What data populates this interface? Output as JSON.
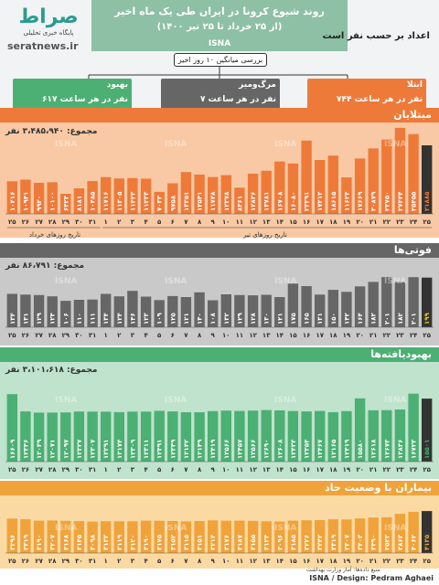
{
  "header": {
    "logo_text": "صراط",
    "logo_subtitle": "پایگاه خبری تحلیلی",
    "site": "seratnews.ir",
    "title": "روند شیوع کرونا در ایران طی یک ماه اخیر",
    "subtitle": "(از ۲۵ خرداد تا ۲۵ تیر ۱۴۰۰)",
    "agency": "ISNA",
    "unit_note": "اعداد بر حسب نفر است",
    "avg_label": "بررسی میانگین ۱۰ روز اخیر",
    "averages": [
      {
        "title": "ابتلا",
        "value": "۷۴۴ نفر در هر ساعت"
      },
      {
        "title": "مرگ‌ومیر",
        "value": "۷ نفر در هر ساعت"
      },
      {
        "title": "بهبود",
        "value": "۶۱۷ نفر در هر ساعت"
      }
    ]
  },
  "colors": {
    "header_band": "#8dc0a4",
    "infections": "#ee7a3a",
    "infections_bg": "#f8c9a4",
    "deaths": "#666666",
    "deaths_bg": "#c9c9c9",
    "recovered": "#4caf73",
    "recovered_bg": "#bfe3cc",
    "severe": "#f0a33a",
    "severe_bg": "#fbd9a3",
    "highlight": "#333333"
  },
  "watermark": "ISNA",
  "date_labels": {
    "khordad": "تاریخ روزهای خرداد",
    "tir": "تاریخ روزهای تیر"
  },
  "sections": {
    "infections": {
      "title": "مبتلایان",
      "total": "مجموع: ۳،۴۸۵،۹۴۰ نفر"
    },
    "deaths": {
      "title": "فوتی‌ها",
      "total": "مجموع: ۸۶،۷۹۱ نفر"
    },
    "recovered": {
      "title": "بهبودیافته‌ها",
      "total": "مجموع: ۳،۱۰۱،۶۱۸ نفر"
    },
    "severe": {
      "title": "بیماران با وضعیت حاد",
      "total": ""
    }
  },
  "footer": {
    "source": "منبع داده‌ها: آمار وزارت بهداشت",
    "credit": "ISNA / Design: Pedram Aghaei"
  },
  "chart_data": [
    {
      "type": "bar",
      "title": "مبتلایان",
      "categories": [
        "25",
        "26",
        "27",
        "28",
        "29",
        "30",
        "31",
        "1",
        "2",
        "3",
        "4",
        "5",
        "6",
        "7",
        "8",
        "9",
        "10",
        "11",
        "12",
        "13",
        "14",
        "15",
        "16",
        "17",
        "18",
        "19",
        "20",
        "21",
        "22",
        "23",
        "24",
        "25"
      ],
      "category_labels": [
        "۲۵",
        "۲۶",
        "۲۷",
        "۲۸",
        "۲۹",
        "۳۰",
        "۳۱",
        "۱",
        "۲",
        "۳",
        "۴",
        "۵",
        "۶",
        "۷",
        "۸",
        "۹",
        "۱۰",
        "۱۱",
        "۱۲",
        "۱۳",
        "۱۴",
        "۱۵",
        "۱۶",
        "۱۷",
        "۱۸",
        "۱۹",
        "۲۰",
        "۲۱",
        "۲۲",
        "۲۳",
        "۲۴",
        "۲۵"
      ],
      "values": [
        10416,
        10941,
        9920,
        10100,
        6424,
        8181,
        10485,
        11716,
        11305,
        11423,
        11233,
        7033,
        9758,
        13351,
        12541,
        11748,
        12378,
        8361,
        12836,
        13781,
        16708,
        16080,
        23391,
        17212,
        18615,
        11624,
        17669,
        20879,
        23750,
        27444,
        25455,
        21885
      ],
      "value_labels": [
        "۱۰۴۱۶",
        "۱۰۹۴۱",
        "۹۹۲۰",
        "۱۰۱۰۰",
        "۶۴۲۴",
        "۸۱۸۱",
        "۱۰۴۸۵",
        "۱۱۷۱۶",
        "۱۱۳۰۵",
        "۱۱۴۲۳",
        "۱۱۲۳۳",
        "۷۰۳۳",
        "۹۷۵۸",
        "۱۳۳۵۱",
        "۱۲۵۴۱",
        "۱۱۷۴۸",
        "۱۲۳۷۸",
        "۸۳۶۱",
        "۱۲۸۳۶",
        "۱۳۷۸۱",
        "۱۶۷۰۸",
        "۱۶۰۸۰",
        "۲۳۳۹۱",
        "۱۷۲۱۲",
        "۱۸۶۱۵",
        "۱۱۶۲۴",
        "۱۷۶۶۹",
        "۲۰۸۷۹",
        "۲۳۷۵۰",
        "۲۷۴۴۴",
        "۲۵۴۵۵",
        "۲۱۸۸۵"
      ],
      "ylim": [
        0,
        28000
      ]
    },
    {
      "type": "bar",
      "title": "فوتی‌ها",
      "categories": [
        "25",
        "26",
        "27",
        "28",
        "29",
        "30",
        "31",
        "1",
        "2",
        "3",
        "4",
        "5",
        "6",
        "7",
        "8",
        "9",
        "10",
        "11",
        "12",
        "13",
        "14",
        "15",
        "16",
        "17",
        "18",
        "19",
        "20",
        "21",
        "22",
        "23",
        "24",
        "25"
      ],
      "category_labels": [
        "۲۵",
        "۲۶",
        "۲۷",
        "۲۸",
        "۲۹",
        "۳۰",
        "۳۱",
        "۱",
        "۲",
        "۳",
        "۴",
        "۵",
        "۶",
        "۷",
        "۸",
        "۹",
        "۱۰",
        "۱۱",
        "۱۲",
        "۱۳",
        "۱۴",
        "۱۵",
        "۱۶",
        "۱۷",
        "۱۸",
        "۱۹",
        "۲۰",
        "۲۱",
        "۲۲",
        "۲۳",
        "۲۴",
        "۲۵"
      ],
      "values": [
        134,
        131,
        129,
        124,
        106,
        110,
        111,
        134,
        124,
        146,
        123,
        109,
        125,
        121,
        140,
        108,
        132,
        129,
        128,
        130,
        121,
        175,
        165,
        131,
        150,
        142,
        164,
        182,
        201,
        182,
        201,
        199
      ],
      "value_labels": [
        "۱۳۴",
        "۱۳۱",
        "۱۲۹",
        "۱۲۴",
        "۱۰۶",
        "۱۱۰",
        "۱۱۱",
        "۱۳۴",
        "۱۲۴",
        "۱۴۶",
        "۱۲۳",
        "۱۰۹",
        "۱۲۵",
        "۱۲۱",
        "۱۴۰",
        "۱۰۸",
        "۱۳۲",
        "۱۲۹",
        "۱۲۸",
        "۱۳۰",
        "۱۲۱",
        "۱۷۵",
        "۱۶۵",
        "۱۳۱",
        "۱۵۰",
        "۱۴۲",
        "۱۶۴",
        "۱۸۲",
        "۲۰۱",
        "۱۸۲",
        "۲۰۱",
        "۱۹۹"
      ],
      "ylim": [
        0,
        220
      ]
    },
    {
      "type": "bar",
      "title": "بهبودیافته‌ها",
      "categories": [
        "25",
        "26",
        "27",
        "28",
        "29",
        "30",
        "31",
        "1",
        "2",
        "3",
        "4",
        "5",
        "6",
        "7",
        "8",
        "9",
        "10",
        "11",
        "12",
        "13",
        "14",
        "15",
        "16",
        "17",
        "18",
        "19",
        "20",
        "21",
        "22",
        "23",
        "24",
        "25"
      ],
      "category_labels": [
        "۲۵",
        "۲۶",
        "۲۷",
        "۲۸",
        "۲۹",
        "۳۰",
        "۳۱",
        "۱",
        "۲",
        "۳",
        "۴",
        "۵",
        "۶",
        "۷",
        "۸",
        "۹",
        "۱۰",
        "۱۱",
        "۱۲",
        "۱۳",
        "۱۴",
        "۱۵",
        "۱۶",
        "۱۷",
        "۱۸",
        "۱۹",
        "۲۰",
        "۲۱",
        "۲۲",
        "۲۳",
        "۲۴",
        "۲۵"
      ],
      "values": [
        16609,
        12346,
        12049,
        12071,
        12097,
        12327,
        12307,
        12291,
        12174,
        12309,
        12311,
        12491,
        12349,
        12142,
        12149,
        12419,
        12566,
        12457,
        12566,
        12690,
        12608,
        12434,
        12354,
        12467,
        12165,
        12419,
        15580,
        12618,
        12673,
        12836,
        16723,
        15501
      ],
      "value_labels": [
        "۱۶۶۰۹",
        "۱۲۳۴۶",
        "۱۲۰۴۹",
        "۱۲۰۷۱",
        "۱۲۰۹۷",
        "۱۲۳۲۷",
        "۱۲۳۰۷",
        "۱۲۲۹۱",
        "۱۲۱۷۴",
        "۱۲۳۰۹",
        "۱۲۳۱۱",
        "۱۲۴۹۱",
        "۱۲۳۴۹",
        "۱۲۱۴۲",
        "۱۲۱۴۹",
        "۱۲۴۱۹",
        "۱۲۵۶۶",
        "۱۲۴۵۷",
        "۱۲۵۶۶",
        "۱۲۶۹۰",
        "۱۲۶۰۸",
        "۱۲۴۳۴",
        "۱۲۳۵۴",
        "۱۲۴۶۷",
        "۱۲۱۶۵",
        "۱۲۴۱۹",
        "۱۵۵۸۰",
        "۱۲۶۱۸",
        "۱۲۶۷۳",
        "۱۲۸۳۶",
        "۱۶۷۲۳",
        "۱۵۵۰۱"
      ],
      "ylim": [
        0,
        18000
      ]
    },
    {
      "type": "bar",
      "title": "بیماران با وضعیت حاد",
      "categories": [
        "25",
        "26",
        "27",
        "28",
        "29",
        "30",
        "31",
        "1",
        "2",
        "3",
        "4",
        "5",
        "6",
        "7",
        "8",
        "9",
        "10",
        "11",
        "12",
        "13",
        "14",
        "15",
        "16",
        "17",
        "18",
        "19",
        "20",
        "21",
        "22",
        "23",
        "24",
        "25"
      ],
      "category_labels": [
        "۲۵",
        "۲۶",
        "۲۷",
        "۲۸",
        "۲۹",
        "۳۰",
        "۳۱",
        "۱",
        "۲",
        "۳",
        "۴",
        "۵",
        "۶",
        "۷",
        "۸",
        "۹",
        "۱۰",
        "۱۱",
        "۱۲",
        "۱۳",
        "۱۴",
        "۱۵",
        "۱۶",
        "۱۷",
        "۱۸",
        "۱۹",
        "۲۰",
        "۲۱",
        "۲۲",
        "۲۳",
        "۲۴",
        "۲۵"
      ],
      "values": [
        3396,
        3319,
        3190,
        3207,
        3168,
        3145,
        3098,
        3133,
        3119,
        3120,
        3190,
        3175,
        3152,
        3115,
        3151,
        3214,
        3176,
        3187,
        3155,
        3124,
        3096,
        3185,
        3226,
        3242,
        3319,
        3307,
        3403,
        3490,
        3523,
        3863,
        4062,
        4135
      ],
      "value_labels": [
        "۳۳۹۶",
        "۳۳۱۹",
        "۳۱۹۰",
        "۳۲۰۷",
        "۳۱۶۸",
        "۳۱۴۵",
        "۳۰۹۸",
        "۳۱۳۳",
        "۳۱۱۹",
        "۳۱۲۰",
        "۳۱۹۰",
        "۳۱۷۵",
        "۳۱۵۲",
        "۳۱۱۵",
        "۳۱۵۱",
        "۳۲۱۴",
        "۳۱۷۶",
        "۳۱۸۷",
        "۳۱۵۵",
        "۳۱۲۴",
        "۳۰۹۶",
        "۳۱۸۵",
        "۳۲۲۶",
        "۳۲۴۲",
        "۳۳۱۹",
        "۳۳۰۷",
        "۳۴۰۳",
        "۳۴۹۰",
        "۳۵۲۳",
        "۳۸۶۳",
        "۴۰۶۲",
        "۴۱۳۵"
      ],
      "ylim": [
        0,
        4500
      ]
    }
  ]
}
